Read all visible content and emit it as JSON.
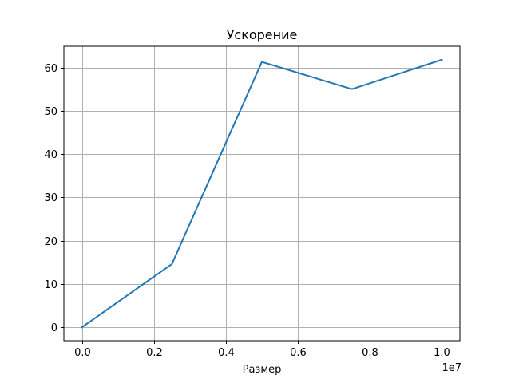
{
  "chart_data": {
    "type": "line",
    "title": "Ускорение",
    "xlabel": "Размер",
    "ylabel": "",
    "x_offset_label": "1e7",
    "xlim": [
      -0.05,
      1.05
    ],
    "ylim": [
      -3.1,
      64.9
    ],
    "xticks": [
      0.0,
      0.2,
      0.4,
      0.6,
      0.8,
      1.0
    ],
    "xtick_labels": [
      "0.0",
      "0.2",
      "0.4",
      "0.6",
      "0.8",
      "1.0"
    ],
    "yticks": [
      0,
      10,
      20,
      30,
      40,
      50,
      60
    ],
    "ytick_labels": [
      "0",
      "10",
      "20",
      "30",
      "40",
      "50",
      "60"
    ],
    "grid": true,
    "series": [
      {
        "name": "Ускорение",
        "color": "#1f77b4",
        "x": [
          0.0,
          0.25,
          0.5,
          0.75,
          1.0
        ],
        "y": [
          0.0,
          14.6,
          61.3,
          55.0,
          61.8
        ]
      }
    ]
  }
}
